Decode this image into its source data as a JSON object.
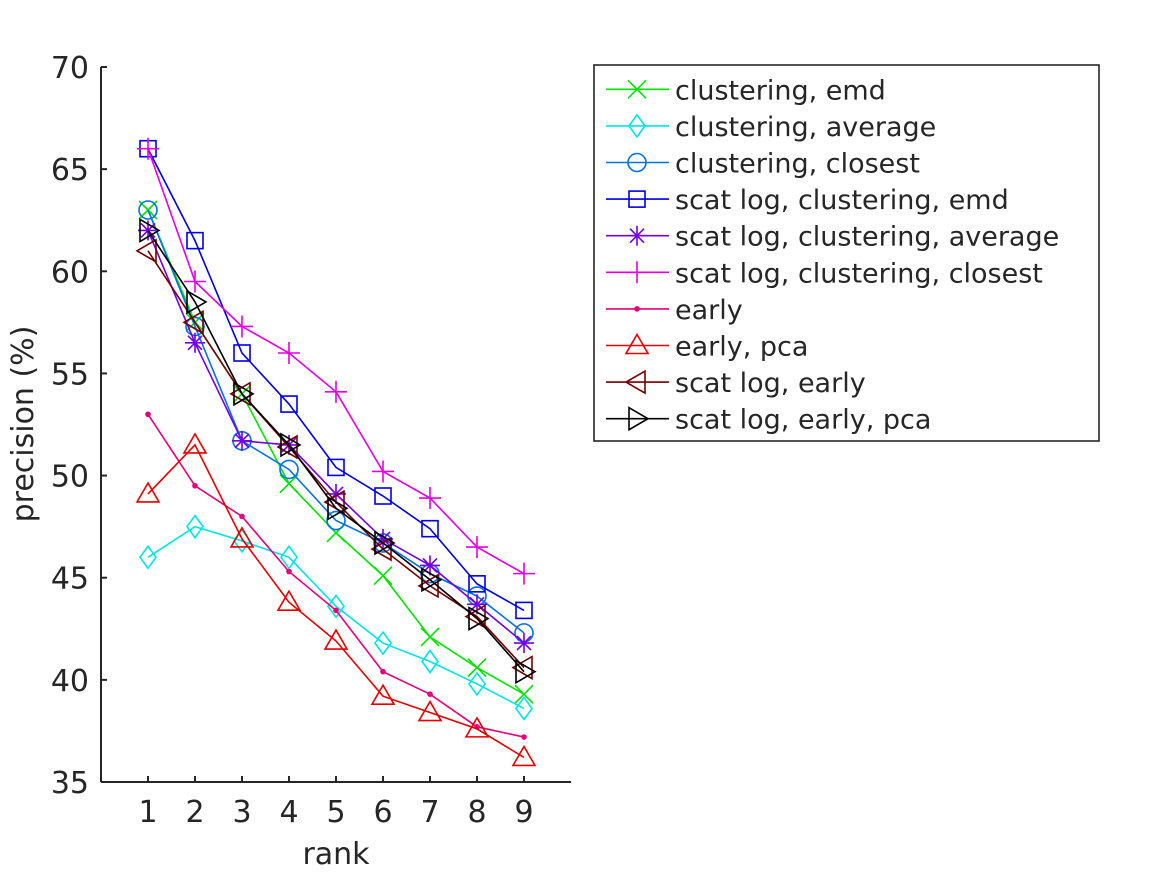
{
  "chart_data": {
    "type": "line",
    "title": "",
    "xlabel": "rank",
    "ylabel": "precision (%)",
    "x": [
      1,
      2,
      3,
      4,
      5,
      6,
      7,
      8,
      9
    ],
    "xlim": [
      0,
      10
    ],
    "ylim": [
      35,
      70
    ],
    "xticks": [
      "1",
      "2",
      "3",
      "4",
      "5",
      "6",
      "7",
      "8",
      "9"
    ],
    "yticks": [
      "35",
      "40",
      "45",
      "50",
      "55",
      "60",
      "65",
      "70"
    ],
    "grid": false,
    "legend_position": "outside-top-right",
    "series": [
      {
        "name": "clustering, emd",
        "color": "#00e600",
        "marker": "x",
        "values": [
          63.0,
          57.5,
          54.0,
          49.6,
          47.2,
          45.1,
          42.1,
          40.6,
          39.3
        ]
      },
      {
        "name": "clustering, average",
        "color": "#00e6e6",
        "marker": "diamond",
        "values": [
          46.0,
          47.5,
          46.8,
          46.0,
          43.6,
          41.8,
          40.9,
          39.8,
          38.6
        ]
      },
      {
        "name": "clustering, closest",
        "color": "#0073e6",
        "marker": "circle",
        "values": [
          63.0,
          57.3,
          51.7,
          50.3,
          47.8,
          46.7,
          45.2,
          44.1,
          42.3
        ]
      },
      {
        "name": "scat log, clustering, emd",
        "color": "#0000e6",
        "marker": "square",
        "values": [
          66.0,
          61.5,
          56.0,
          53.5,
          50.4,
          49.0,
          47.4,
          44.7,
          43.4
        ]
      },
      {
        "name": "scat log, clustering, average",
        "color": "#7300e6",
        "marker": "asterisk",
        "values": [
          62.0,
          56.5,
          51.7,
          51.5,
          49.1,
          46.9,
          45.6,
          43.7,
          41.8
        ]
      },
      {
        "name": "scat log, clustering, closest",
        "color": "#e600e6",
        "marker": "plus",
        "values": [
          66.0,
          59.5,
          57.3,
          56.0,
          54.1,
          50.2,
          48.9,
          46.5,
          45.2
        ]
      },
      {
        "name": "early",
        "color": "#e6007a",
        "marker": "point",
        "values": [
          53.0,
          49.5,
          48.0,
          45.3,
          43.4,
          40.4,
          39.3,
          37.7,
          37.2
        ]
      },
      {
        "name": "early, pca",
        "color": "#e60000",
        "marker": "triangle-up",
        "values": [
          49.1,
          51.5,
          46.9,
          43.8,
          41.9,
          39.2,
          38.4,
          37.6,
          36.2
        ]
      },
      {
        "name": "scat log, early",
        "color": "#730000",
        "marker": "triangle-left",
        "values": [
          61.0,
          57.5,
          54.0,
          51.4,
          48.7,
          46.4,
          44.6,
          43.1,
          40.6
        ]
      },
      {
        "name": "scat log, early, pca",
        "color": "#000000",
        "marker": "triangle-right",
        "values": [
          62.0,
          58.5,
          54.0,
          51.5,
          48.4,
          46.7,
          44.9,
          43.0,
          40.4
        ]
      }
    ]
  }
}
